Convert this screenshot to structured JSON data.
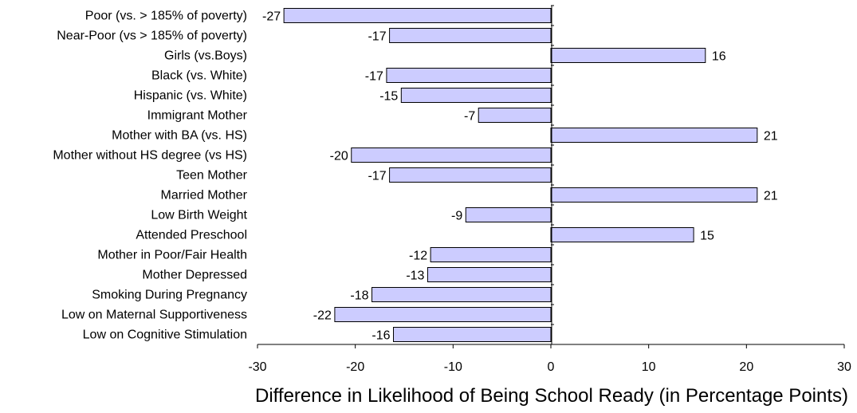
{
  "chart_data": {
    "type": "bar",
    "orientation": "horizontal",
    "categories": [
      "Poor (vs. > 185% of poverty)",
      "Near-Poor  (vs > 185% of poverty)",
      "Girls (vs.Boys)",
      "Black (vs. White)",
      "Hispanic (vs. White)",
      "Immigrant Mother",
      "Mother with BA (vs. HS)",
      "Mother without HS degree (vs HS)",
      "Teen Mother",
      "Married Mother",
      "Low Birth Weight",
      "Attended Preschool",
      "Mother in Poor/Fair Health",
      "Mother Depressed ",
      "Smoking During Pregnancy",
      "Low on Maternal Supportiveness",
      "Low on Cognitive Stimulation"
    ],
    "values": [
      -27.3,
      -16.5,
      15.8,
      -16.8,
      -15.3,
      -7.4,
      21.1,
      -20.4,
      -16.5,
      21.1,
      -8.7,
      14.6,
      -12.3,
      -12.6,
      -18.3,
      -22.1,
      -16.1
    ],
    "value_labels": [
      "-27",
      "-17",
      "16",
      "-17",
      "-15",
      "-7",
      "21",
      "-20",
      "-17",
      "21",
      "-9",
      "15",
      "-12",
      "-13",
      "-18",
      "-22",
      "-16"
    ],
    "xlabel": "Difference in Likelihood of Being School Ready (in Percentage Points)",
    "xlim": [
      -30,
      30
    ],
    "xticks": [
      -30,
      -20,
      -10,
      0,
      10,
      20,
      30
    ],
    "xtick_labels": [
      "-30",
      "-20",
      "-10",
      "0",
      "10",
      "20",
      "30"
    ],
    "grid": false,
    "bar_color": "#ccccff",
    "bar_edge_color": "#000000"
  }
}
